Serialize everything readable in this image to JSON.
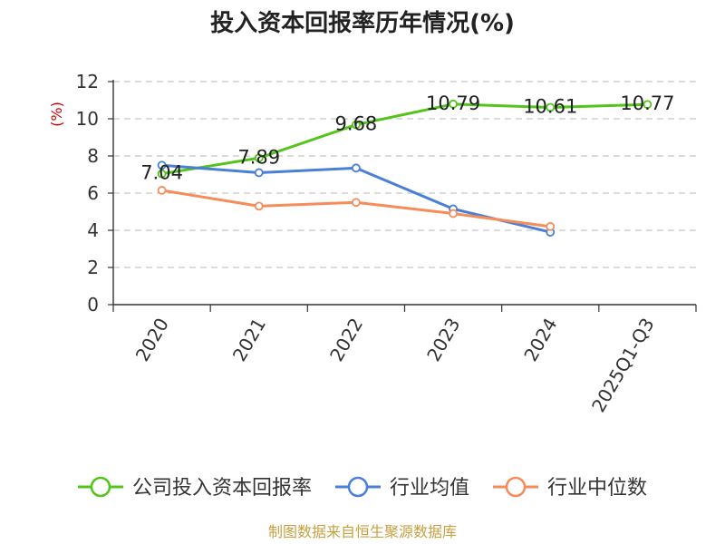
{
  "chart_data": {
    "type": "line",
    "title": "投入资本回报率历年情况(%)",
    "ylabel": "(%)",
    "xlabel": "",
    "categories": [
      "2020",
      "2021",
      "2022",
      "2023",
      "2024",
      "2025Q1-Q3"
    ],
    "ylim": [
      0,
      12
    ],
    "yticks": [
      0,
      2,
      4,
      6,
      8,
      10,
      12
    ],
    "grid": true,
    "legend_position": "bottom",
    "series": [
      {
        "name": "公司投入资本回报率",
        "color": "#52c41a",
        "values": [
          7.04,
          7.89,
          9.68,
          10.79,
          10.61,
          10.77
        ],
        "labels": [
          "7.04",
          "7.89",
          "9.68",
          "10.79",
          "10.61",
          "10.77"
        ]
      },
      {
        "name": "行业均值",
        "color": "#4a7fd8",
        "values": [
          7.5,
          7.1,
          7.35,
          5.15,
          3.9,
          null
        ],
        "labels": []
      },
      {
        "name": "行业中位数",
        "color": "#f58c5a",
        "values": [
          6.15,
          5.3,
          5.5,
          4.9,
          4.2,
          null
        ],
        "labels": []
      }
    ]
  },
  "source_text": "制图数据来自恒生聚源数据库"
}
